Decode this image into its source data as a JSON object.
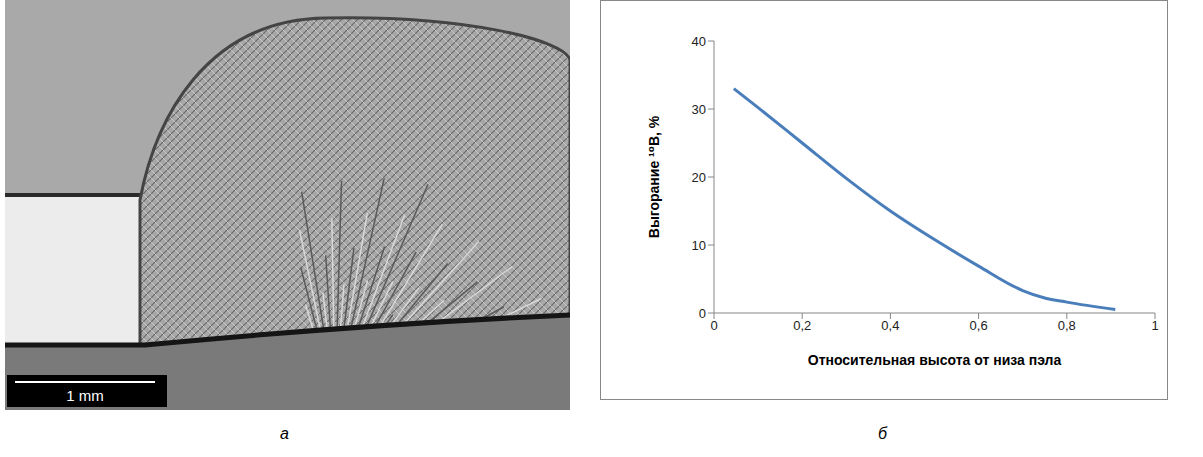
{
  "figure": {
    "image": {
      "label": "а",
      "scale_bar": "1 mm"
    },
    "chart_label": "б"
  },
  "chart_data": {
    "type": "line",
    "x_label": "Относительная высота от низа пэла",
    "y_label": "Выгорание ¹⁰B, %",
    "x": [
      0.045,
      0.1,
      0.2,
      0.3,
      0.4,
      0.5,
      0.6,
      0.7,
      0.75,
      0.8,
      0.91
    ],
    "values": [
      33,
      30.2,
      25,
      19.8,
      15,
      10.8,
      6.9,
      3.3,
      2.2,
      1.6,
      0.5
    ],
    "color": "#4a7ebb",
    "marker": "none",
    "line_style": "solid",
    "xlim": [
      0,
      1
    ],
    "xticks": [
      0,
      {
        "value": 0.2,
        "label": "0,2"
      },
      {
        "value": 0.4,
        "label": "0,4"
      },
      {
        "value": 0.6,
        "label": "0,6"
      },
      {
        "value": 0.8,
        "label": "0,8"
      },
      1
    ],
    "ylim": [
      0,
      40
    ],
    "yticks": [
      0,
      10,
      20,
      30,
      40
    ],
    "grid": false
  }
}
